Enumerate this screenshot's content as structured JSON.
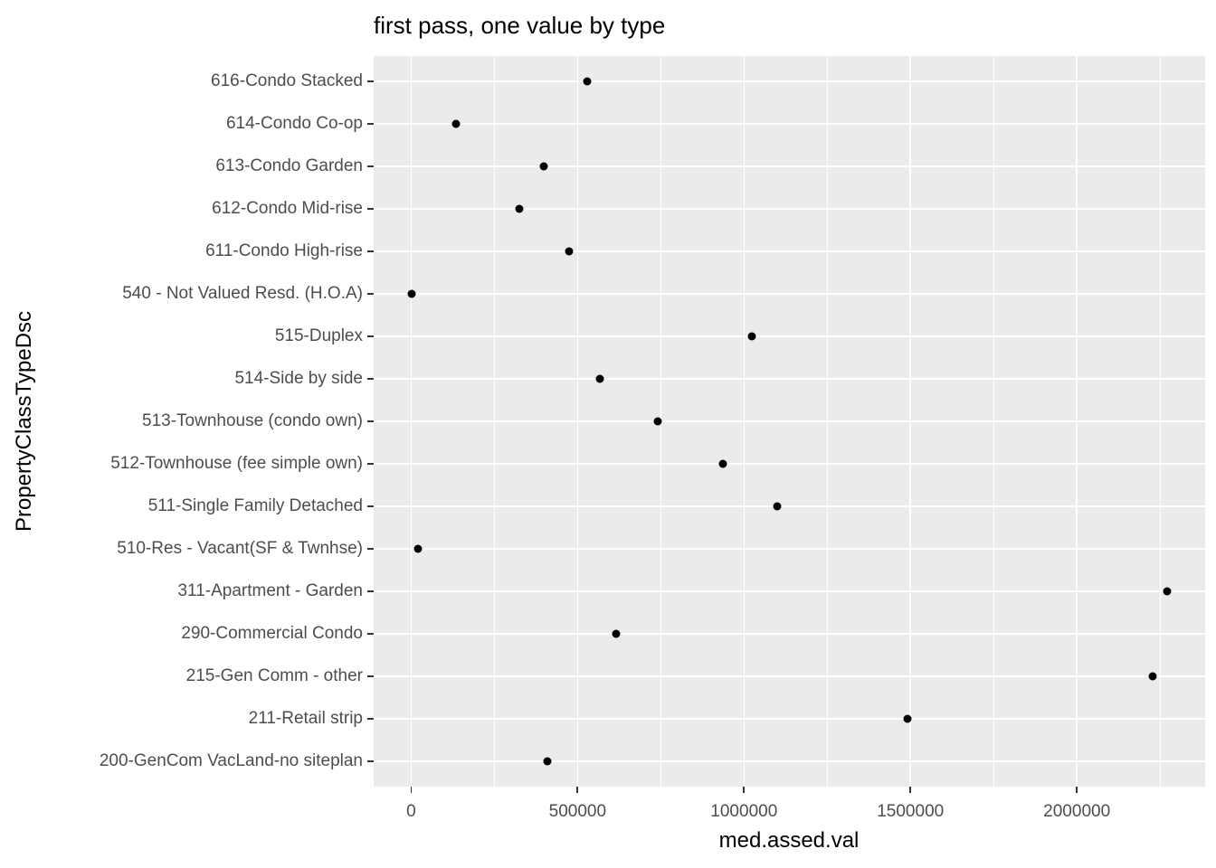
{
  "title": "first pass, one value by type",
  "chart_data": {
    "type": "scatter",
    "subtype": "horizontal-dot-plot",
    "title": "first pass, one value by type",
    "xlabel": "med.assed.val",
    "ylabel": "PropertyClassTypeDsc",
    "grid": true,
    "legend_position": "none",
    "panel_background": "#EBEBEB",
    "gridline_color": "#ffffff",
    "point_color": "#000000",
    "tick_label_color": "#4D4D4D",
    "tick_mark_color": "#333333",
    "x_axis_expansion": 0.05,
    "x_ticks": [
      0,
      500000,
      1000000,
      1500000,
      2000000
    ],
    "x_tick_labels": [
      "0",
      "500000",
      "1000000",
      "1500000",
      "2000000"
    ],
    "x_minor_ticks": [
      250000,
      750000,
      1250000,
      1750000,
      2250000
    ],
    "categories": [
      "616-Condo Stacked",
      "614-Condo Co-op",
      "613-Condo Garden",
      "612-Condo Mid-rise",
      "611-Condo High-rise",
      "540 - Not Valued Resd. (H.O.A)",
      "515-Duplex",
      "514-Side by side",
      "513-Townhouse (condo own)",
      "512-Townhouse (fee simple own)",
      "511-Single Family Detached",
      "510-Res - Vacant(SF & Twnhse)",
      "311-Apartment - Garden",
      "290-Commercial Condo",
      "215-Gen Comm - other",
      "211-Retail strip",
      "200-GenCom VacLand-no siteplan"
    ],
    "values": [
      528000,
      136000,
      399000,
      326000,
      474000,
      1000,
      1025000,
      566000,
      740000,
      936000,
      1100000,
      20000,
      2272000,
      615000,
      2227000,
      1492000,
      409000
    ]
  }
}
